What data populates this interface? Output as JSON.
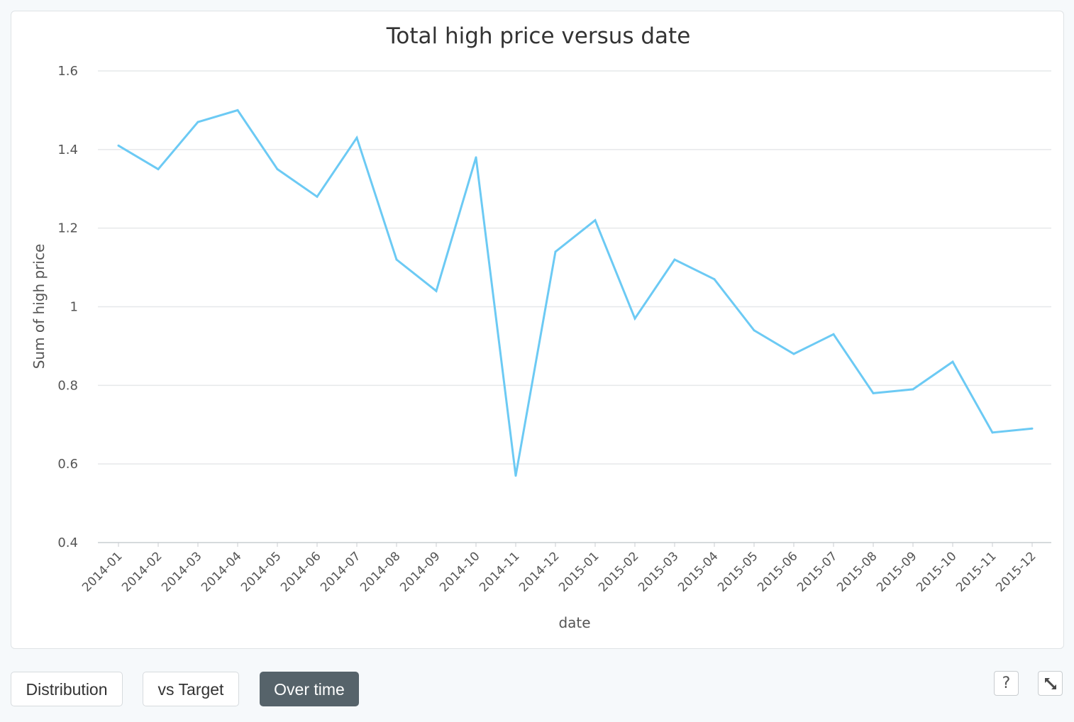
{
  "chart_data": {
    "type": "line",
    "title": "Total high price versus date",
    "xlabel": "date",
    "ylabel": "Sum of high price",
    "ylim": [
      0.4,
      1.6
    ],
    "yticks": [
      "0.4",
      "0.6",
      "0.8",
      "1",
      "1.2",
      "1.4",
      "1.6"
    ],
    "grid": true,
    "line_color": "#6ccaf4",
    "categories": [
      "2014-01",
      "2014-02",
      "2014-03",
      "2014-04",
      "2014-05",
      "2014-06",
      "2014-07",
      "2014-08",
      "2014-09",
      "2014-10",
      "2014-11",
      "2014-12",
      "2015-01",
      "2015-02",
      "2015-03",
      "2015-04",
      "2015-05",
      "2015-06",
      "2015-07",
      "2015-08",
      "2015-09",
      "2015-10",
      "2015-11",
      "2015-12"
    ],
    "series": [
      {
        "values": [
          1.41,
          1.35,
          1.47,
          1.5,
          1.35,
          1.28,
          1.43,
          1.12,
          1.04,
          1.38,
          0.57,
          1.14,
          1.22,
          0.97,
          1.12,
          1.07,
          0.94,
          0.88,
          0.93,
          0.78,
          0.79,
          0.86,
          0.68,
          0.69
        ]
      }
    ]
  },
  "controls": {
    "tabs": [
      {
        "label": "Distribution",
        "active": false
      },
      {
        "label": "vs Target",
        "active": false
      },
      {
        "label": "Over time",
        "active": true
      }
    ],
    "help_label": "?",
    "icons": {
      "help": "help-icon",
      "expand": "expand-icon"
    }
  }
}
